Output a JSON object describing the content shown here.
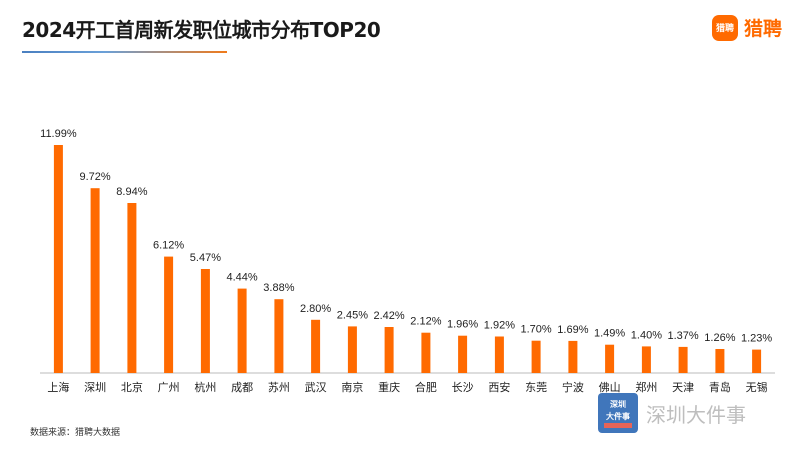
{
  "title": "2024开工首周新发职位城市分布TOP20",
  "logo": {
    "mark_text": "猎聘",
    "text": "猎聘"
  },
  "source": "数据来源：猎聘大数据",
  "watermark": {
    "badge_line1": "深圳",
    "badge_line2": "大件事",
    "text": "深圳大件事"
  },
  "colors": {
    "bar": "#ff6a00",
    "brand": "#ff6a00",
    "axis": "#bbbbbb"
  },
  "chart_data": {
    "type": "bar",
    "categories": [
      "上海",
      "深圳",
      "北京",
      "广州",
      "杭州",
      "成都",
      "苏州",
      "武汉",
      "南京",
      "重庆",
      "合肥",
      "长沙",
      "西安",
      "东莞",
      "宁波",
      "佛山",
      "郑州",
      "天津",
      "青岛",
      "无锡"
    ],
    "values": [
      11.99,
      9.72,
      8.94,
      6.12,
      5.47,
      4.44,
      3.88,
      2.8,
      2.45,
      2.42,
      2.12,
      1.96,
      1.92,
      1.7,
      1.69,
      1.49,
      1.4,
      1.37,
      1.26,
      1.23
    ],
    "data_labels": [
      "11.99%",
      "9.72%",
      "8.94%",
      "6.12%",
      "5.47%",
      "4.44%",
      "3.88%",
      "2.80%",
      "2.45%",
      "2.42%",
      "2.12%",
      "1.96%",
      "1.92%",
      "1.70%",
      "1.69%",
      "1.49%",
      "1.40%",
      "1.37%",
      "1.26%",
      "1.23%"
    ],
    "ylim": [
      0,
      12
    ],
    "grid": false,
    "legend": "none"
  }
}
